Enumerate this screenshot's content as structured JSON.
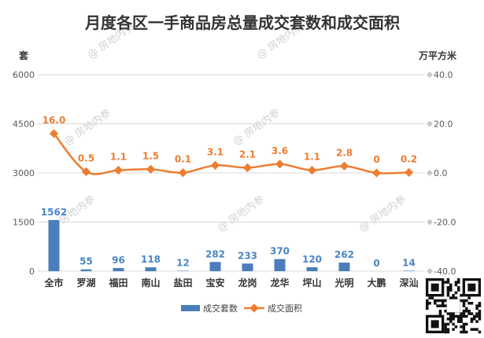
{
  "chart_data": {
    "type": "bar",
    "title": "月度各区一手商品房总量成交套数和成交面积",
    "categories": [
      "全市",
      "罗湖",
      "福田",
      "南山",
      "盐田",
      "宝安",
      "龙岗",
      "龙华",
      "坪山",
      "光明",
      "大鹏",
      "深汕"
    ],
    "y_left": {
      "unit_label": "套",
      "ticks": [
        "0",
        "1500",
        "3000",
        "4500",
        "6000"
      ],
      "ylim": [
        0,
        6000
      ]
    },
    "y_right": {
      "unit_label": "万平方米",
      "ticks": [
        "-40.0",
        "-20.0",
        "0.0",
        "20.0",
        "40.0"
      ],
      "ylim": [
        -40,
        40
      ]
    },
    "series": [
      {
        "name": "成交套数",
        "type": "bar",
        "axis": "left",
        "color": "#4a7ebb",
        "label_color": "#4a86c5",
        "values": [
          1562,
          55,
          96,
          118,
          12,
          282,
          233,
          370,
          120,
          262,
          0,
          14
        ],
        "labels": [
          "1562",
          "55",
          "96",
          "118",
          "12",
          "282",
          "233",
          "370",
          "120",
          "262",
          "0",
          "14"
        ]
      },
      {
        "name": "成交面积",
        "type": "line",
        "axis": "right",
        "color": "#ed7d31",
        "values": [
          16.0,
          0.5,
          1.1,
          1.5,
          0.1,
          3.1,
          2.1,
          3.6,
          1.1,
          2.8,
          0,
          0.2
        ],
        "labels": [
          "16.0",
          "0.5",
          "1.1",
          "1.5",
          "0.1",
          "3.1",
          "2.1",
          "3.6",
          "1.1",
          "2.8",
          "0",
          "0.2"
        ]
      }
    ],
    "grid": true,
    "legend_position": "bottom"
  },
  "watermark": "房地内参",
  "colors": {
    "bar": "#4a7ebb",
    "line": "#ed7d31",
    "grid": "#d9d9d9",
    "text": "#333333"
  }
}
